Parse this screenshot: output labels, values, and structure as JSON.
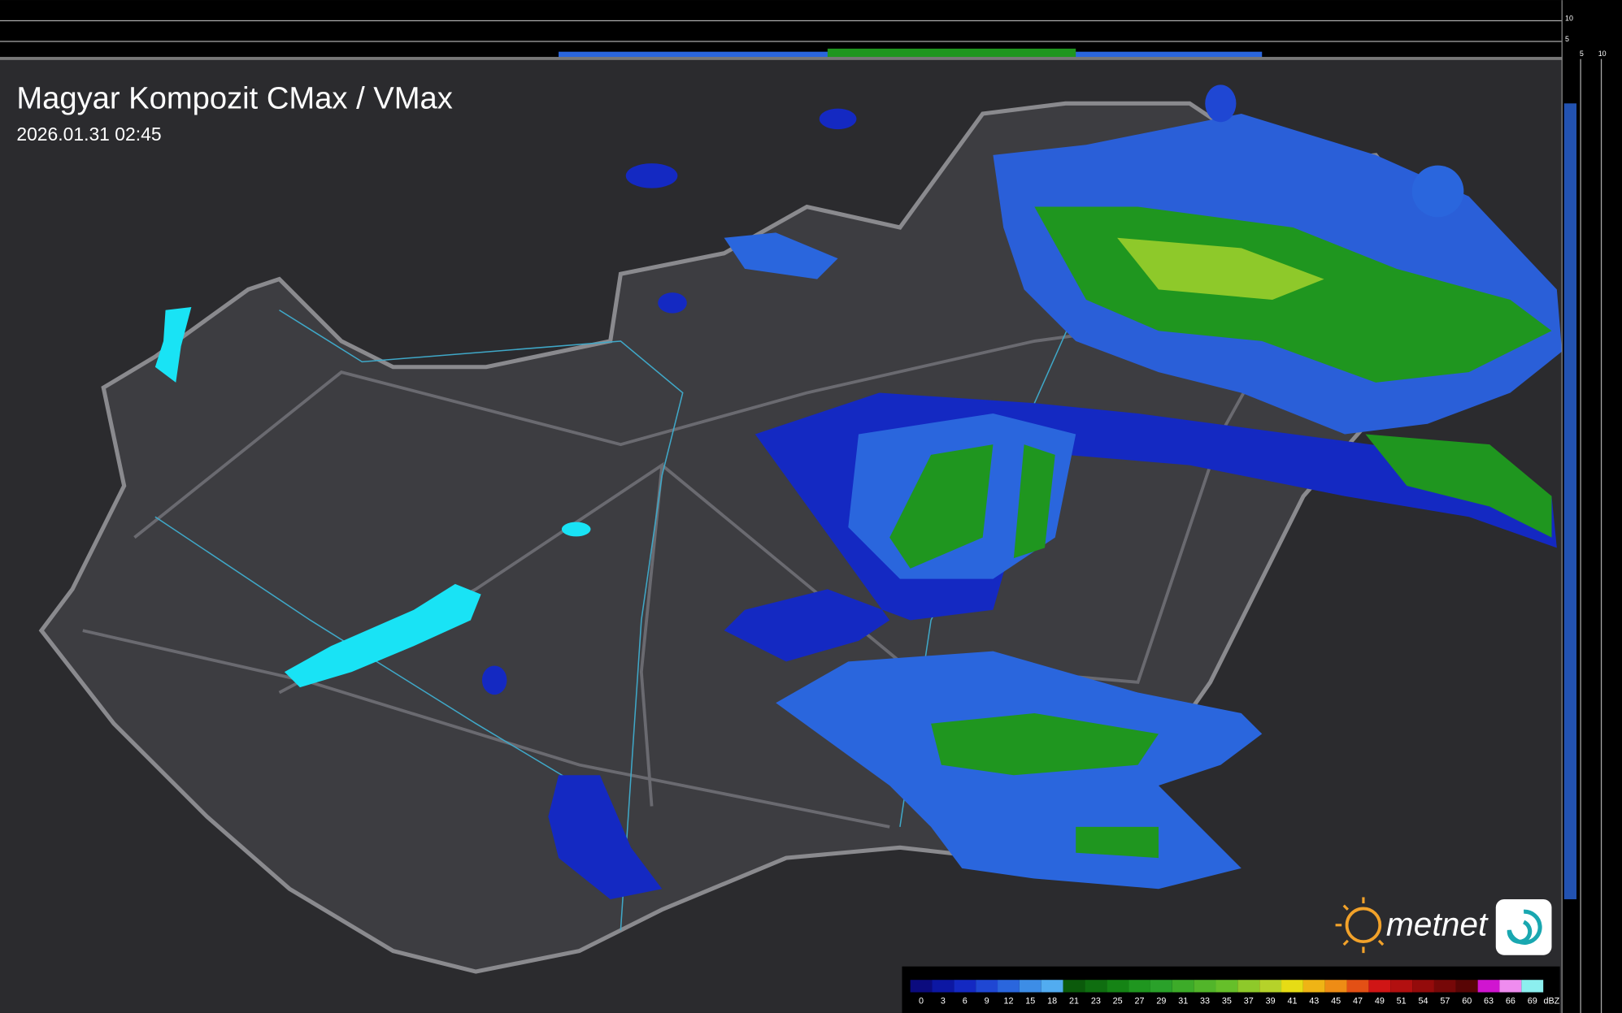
{
  "header": {
    "title": "Magyar Kompozit CMax / VMax",
    "timestamp": "2026.01.31 02:45"
  },
  "side_scale": {
    "top": [
      "10",
      "5"
    ],
    "bottom": [
      "5",
      "10"
    ]
  },
  "logo": {
    "text": "metnet"
  },
  "legend": {
    "unit": "dBZ",
    "entries": [
      {
        "label": 0,
        "color": "#0b0b7e"
      },
      {
        "label": 3,
        "color": "#0c17a3"
      },
      {
        "label": 6,
        "color": "#1429c2"
      },
      {
        "label": 9,
        "color": "#1f47d3"
      },
      {
        "label": 12,
        "color": "#2a66dd"
      },
      {
        "label": 15,
        "color": "#3d8de6"
      },
      {
        "label": 18,
        "color": "#52acf0"
      },
      {
        "label": 21,
        "color": "#0b5a0b"
      },
      {
        "label": 23,
        "color": "#0f6e10"
      },
      {
        "label": 25,
        "color": "#158315"
      },
      {
        "label": 27,
        "color": "#1f961f"
      },
      {
        "label": 29,
        "color": "#2aa12a"
      },
      {
        "label": 31,
        "color": "#3dab29"
      },
      {
        "label": 33,
        "color": "#52b52a"
      },
      {
        "label": 35,
        "color": "#66bf2a"
      },
      {
        "label": 37,
        "color": "#8ec92a"
      },
      {
        "label": 39,
        "color": "#b5d22a"
      },
      {
        "label": 41,
        "color": "#e6dc15"
      },
      {
        "label": 43,
        "color": "#efb415"
      },
      {
        "label": 45,
        "color": "#ee8c15"
      },
      {
        "label": 47,
        "color": "#e35015"
      },
      {
        "label": 49,
        "color": "#d01515"
      },
      {
        "label": 51,
        "color": "#b21010"
      },
      {
        "label": 54,
        "color": "#940b0b"
      },
      {
        "label": 57,
        "color": "#760808"
      },
      {
        "label": 60,
        "color": "#580505"
      },
      {
        "label": 63,
        "color": "#d015d0"
      },
      {
        "label": 66,
        "color": "#ef8cef"
      },
      {
        "label": 69,
        "color": "#8cefef"
      }
    ]
  }
}
